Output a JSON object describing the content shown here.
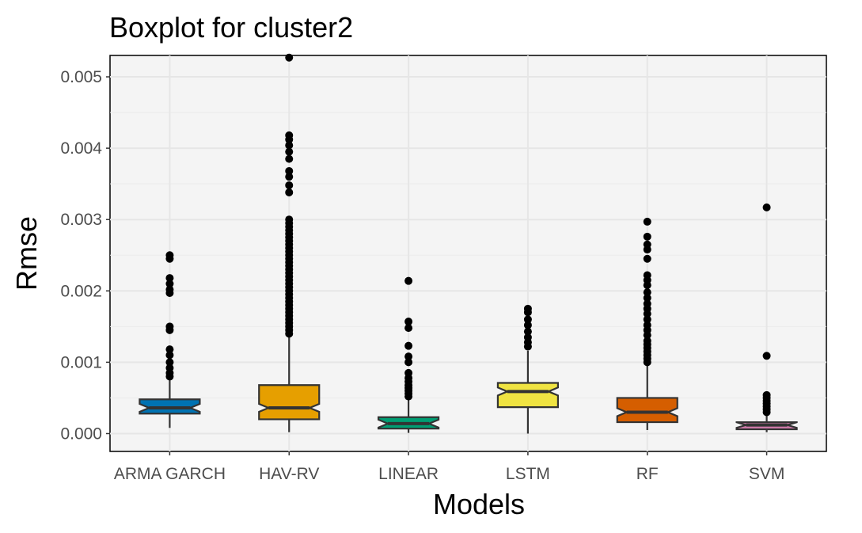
{
  "chart_data": {
    "type": "boxplot",
    "title": "Boxplot for cluster2",
    "xlabel": "Models",
    "ylabel": "Rmse",
    "categories": [
      "ARMA GARCH",
      "HAV-RV",
      "LINEAR",
      "LSTM",
      "RF",
      "SVM"
    ],
    "ylim": [
      -0.00025,
      0.0053
    ],
    "yticks": [
      "0.000",
      "0.001",
      "0.002",
      "0.003",
      "0.004",
      "0.005"
    ],
    "ytick_values": [
      0,
      0.001,
      0.002,
      0.003,
      0.004,
      0.005
    ],
    "grid": true,
    "notched": true,
    "boxes": [
      {
        "category": "ARMA GARCH",
        "color": "#0072B2",
        "median": 0.00036,
        "q1": 0.00028,
        "q3": 0.00048,
        "whisker_low": 8e-05,
        "whisker_high": 0.00076,
        "outliers": [
          0.0025,
          0.00245,
          0.00218,
          0.0021,
          0.00202,
          0.00197,
          0.0015,
          0.00145,
          0.00118,
          0.0011,
          0.001,
          0.00092,
          0.00085,
          0.0008
        ]
      },
      {
        "category": "HAV-RV",
        "color": "#E69F00",
        "median": 0.00036,
        "q1": 0.0002,
        "q3": 0.00068,
        "whisker_low": 2e-05,
        "whisker_high": 0.00137,
        "outliers": [
          0.00527,
          0.00418,
          0.00412,
          0.00404,
          0.00395,
          0.00385,
          0.00368,
          0.0036,
          0.00348,
          0.00338,
          0.003,
          0.00295,
          0.0029,
          0.00285,
          0.0028,
          0.00275,
          0.0027,
          0.00265,
          0.0026,
          0.00255,
          0.0025,
          0.00245,
          0.0024,
          0.00235,
          0.0023,
          0.00225,
          0.0022,
          0.00215,
          0.0021,
          0.00205,
          0.002,
          0.00195,
          0.0019,
          0.00185,
          0.0018,
          0.00175,
          0.0017,
          0.00165,
          0.0016,
          0.00155,
          0.0015,
          0.00145,
          0.0014
        ]
      },
      {
        "category": "LINEAR",
        "color": "#009E73",
        "median": 0.00014,
        "q1": 7e-05,
        "q3": 0.00023,
        "whisker_low": 1e-05,
        "whisker_high": 0.00047,
        "outliers": [
          0.00214,
          0.00157,
          0.00148,
          0.00123,
          0.00108,
          0.001,
          0.00085,
          0.00078,
          0.00073,
          0.00068,
          0.00064,
          0.0006,
          0.00056,
          0.00052
        ]
      },
      {
        "category": "LSTM",
        "color": "#F0E442",
        "median": 0.00059,
        "q1": 0.00037,
        "q3": 0.00071,
        "whisker_low": 0,
        "whisker_high": 0.00116,
        "outliers": [
          0.00175,
          0.0017,
          0.0016,
          0.00152,
          0.00143,
          0.00135,
          0.00128,
          0.00122
        ]
      },
      {
        "category": "RF",
        "color": "#D55E00",
        "median": 0.0003,
        "q1": 0.00016,
        "q3": 0.0005,
        "whisker_low": 5e-05,
        "whisker_high": 0.00098,
        "outliers": [
          0.00297,
          0.00276,
          0.00265,
          0.00258,
          0.00245,
          0.00222,
          0.00215,
          0.00208,
          0.00198,
          0.0019,
          0.00182,
          0.00175,
          0.00168,
          0.0016,
          0.00152,
          0.00145,
          0.00138,
          0.0013,
          0.00125,
          0.0012,
          0.00115,
          0.0011,
          0.00105,
          0.001
        ]
      },
      {
        "category": "SVM",
        "color": "#CC79A7",
        "median": 0.00012,
        "q1": 6e-05,
        "q3": 0.00016,
        "whisker_low": 2e-05,
        "whisker_high": 0.00027,
        "outliers": [
          0.00317,
          0.00109,
          0.00054,
          0.0005,
          0.00046,
          0.00042,
          0.00038,
          0.00034,
          0.0003
        ]
      }
    ]
  }
}
